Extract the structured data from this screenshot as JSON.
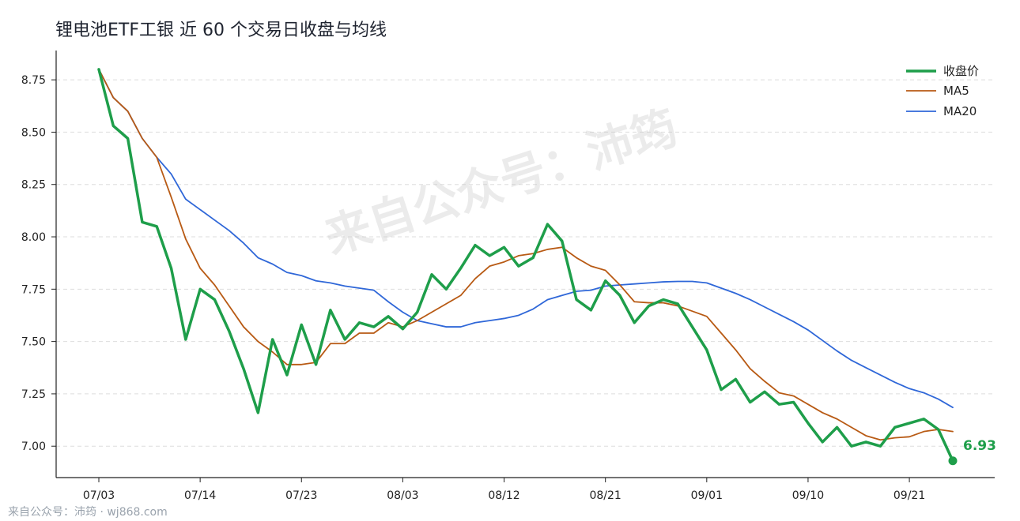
{
  "title": "锂电池ETF工银 近 60 个交易日收盘与均线",
  "watermark": "来自公众号：沛筠",
  "source_text": "来自公众号：沛筠 · wj868.com",
  "colors": {
    "close": "#1e9e4a",
    "ma5": "#b85a14",
    "ma20": "#2f67d8"
  },
  "chart_data": {
    "type": "line",
    "title": "锂电池ETF工银 近 60 个交易日收盘与均线",
    "xlabel": "",
    "ylabel": "",
    "xlim": [
      0,
      59
    ],
    "ylim": [
      6.85,
      8.89
    ],
    "grid": "horizontal-dashed",
    "legend_position": "top-right",
    "x_tick_indices": [
      0,
      7,
      14,
      21,
      28,
      35,
      42,
      49,
      56
    ],
    "x_tick_labels": [
      "07/03",
      "07/14",
      "07/23",
      "08/03",
      "08/12",
      "08/21",
      "09/01",
      "09/10",
      "09/21"
    ],
    "y_ticks": [
      7.0,
      7.25,
      7.5,
      7.75,
      8.0,
      8.25,
      8.5,
      8.75
    ],
    "y_tick_labels": [
      "7.00",
      "7.25",
      "7.50",
      "7.75",
      "8.00",
      "8.25",
      "8.50",
      "8.75"
    ],
    "last_value_label": "6.93",
    "series": [
      {
        "name": "收盘价",
        "color": "#1e9e4a",
        "values": [
          8.8,
          8.53,
          8.47,
          8.07,
          8.05,
          7.85,
          7.51,
          7.75,
          7.7,
          7.55,
          7.37,
          7.16,
          7.51,
          7.34,
          7.58,
          7.39,
          7.65,
          7.51,
          7.59,
          7.57,
          7.62,
          7.56,
          7.64,
          7.82,
          7.75,
          7.85,
          7.96,
          7.91,
          7.95,
          7.86,
          7.9,
          8.06,
          7.98,
          7.7,
          7.65,
          7.79,
          7.72,
          7.59,
          7.67,
          7.7,
          7.68,
          7.57,
          7.46,
          7.27,
          7.32,
          7.21,
          7.26,
          7.2,
          7.21,
          7.11,
          7.02,
          7.09,
          7.0,
          7.02,
          7.0,
          7.09,
          7.11,
          7.13,
          7.08,
          6.93
        ]
      },
      {
        "name": "MA5",
        "color": "#b85a14",
        "values": [
          8.8,
          8.665,
          8.6,
          8.47,
          8.38,
          8.19,
          7.99,
          7.85,
          7.77,
          7.67,
          7.57,
          7.5,
          7.45,
          7.39,
          7.39,
          7.4,
          7.49,
          7.49,
          7.54,
          7.54,
          7.59,
          7.57,
          7.6,
          7.64,
          7.68,
          7.72,
          7.8,
          7.86,
          7.88,
          7.91,
          7.92,
          7.94,
          7.95,
          7.9,
          7.86,
          7.84,
          7.77,
          7.69,
          7.685,
          7.685,
          7.67,
          7.645,
          7.62,
          7.54,
          7.46,
          7.37,
          7.31,
          7.255,
          7.24,
          7.2,
          7.16,
          7.13,
          7.09,
          7.05,
          7.03,
          7.04,
          7.045,
          7.07,
          7.08,
          7.07
        ]
      },
      {
        "name": "MA20",
        "color": "#2f67d8",
        "values": [
          8.8,
          8.665,
          8.6,
          8.47,
          8.38,
          8.3,
          8.18,
          8.13,
          8.08,
          8.03,
          7.97,
          7.9,
          7.87,
          7.83,
          7.815,
          7.79,
          7.78,
          7.765,
          7.755,
          7.745,
          7.69,
          7.64,
          7.6,
          7.585,
          7.57,
          7.57,
          7.59,
          7.6,
          7.61,
          7.625,
          7.655,
          7.7,
          7.72,
          7.74,
          7.745,
          7.765,
          7.77,
          7.775,
          7.78,
          7.785,
          7.787,
          7.787,
          7.78,
          7.755,
          7.73,
          7.7,
          7.665,
          7.63,
          7.595,
          7.555,
          7.505,
          7.455,
          7.41,
          7.375,
          7.34,
          7.305,
          7.275,
          7.255,
          7.225,
          7.185
        ]
      }
    ]
  }
}
